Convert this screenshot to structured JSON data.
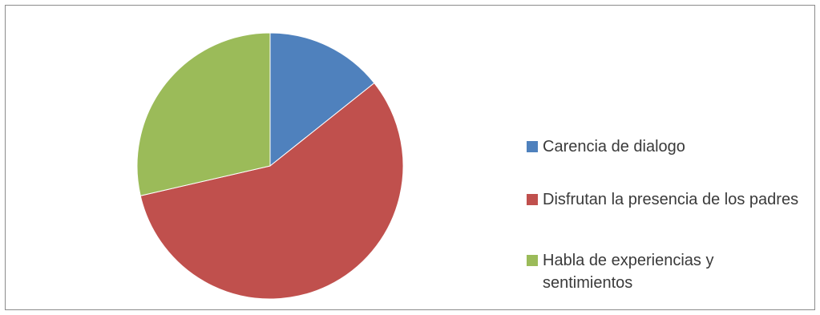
{
  "chart_data": {
    "type": "pie",
    "title": "",
    "start_angle_deg": 0,
    "direction": "clockwise",
    "legend_position": "right",
    "slices": [
      {
        "label": "Carencia de dialogo",
        "value": 14.3,
        "color": "#4F81BD"
      },
      {
        "label": "Disfrutan la presencia de los padres",
        "value": 57.1,
        "color": "#C0504D"
      },
      {
        "label": "Habla de experiencias y sentimientos",
        "value": 28.6,
        "color": "#9BBB59"
      }
    ]
  }
}
